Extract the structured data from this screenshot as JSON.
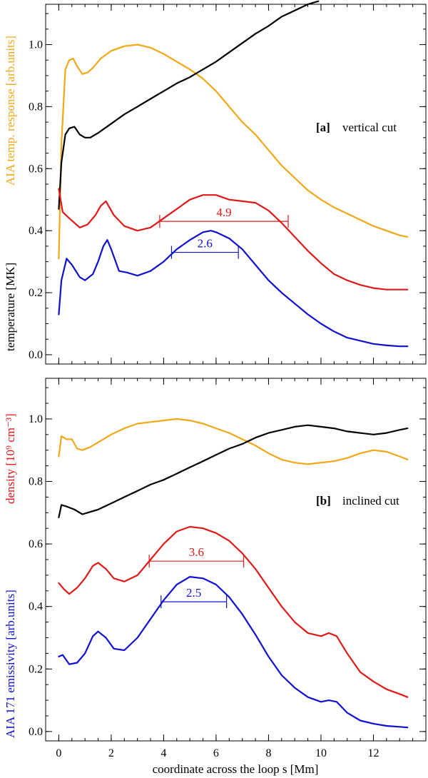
{
  "figure": {
    "xlabel": "coordinate across the loop  s  [Mm]",
    "left_axis_labels": {
      "a_yellow": "AIA temp. response  [arb.units]",
      "a_black": "temperature  [MK]",
      "b_red": "density  [10⁹ cm⁻³]",
      "b_blue": "AIA 171 emissivity  [arb.units]"
    },
    "colors": {
      "yellow": "#f0a818",
      "black": "#000000",
      "red": "#e01818",
      "blue": "#1010d0"
    }
  },
  "chart_data": [
    {
      "type": "line",
      "panel_tag": "[a]",
      "panel_desc": "vertical cut",
      "xlim": [
        -0.5,
        14
      ],
      "ylim": [
        -0.03,
        1.13
      ],
      "xticks": [
        0,
        2,
        4,
        6,
        8,
        10,
        12
      ],
      "yticks": [
        0.0,
        0.2,
        0.4,
        0.6,
        0.8,
        1.0
      ],
      "ytick_labels": [
        "0.0",
        "0.2",
        "0.4",
        "0.6",
        "0.8",
        "1.0"
      ],
      "series": [
        {
          "color": "yellow",
          "x": [
            0,
            0.1,
            0.25,
            0.4,
            0.55,
            0.7,
            0.9,
            1.1,
            1.3,
            1.6,
            2.0,
            2.5,
            3.0,
            3.5,
            4.0,
            4.5,
            5.0,
            5.5,
            6.0,
            6.5,
            7.0,
            7.5,
            8.0,
            8.5,
            9.0,
            9.5,
            10.0,
            10.5,
            11.0,
            11.5,
            12.0,
            12.5,
            13.0,
            13.3
          ],
          "y": [
            0.31,
            0.68,
            0.92,
            0.95,
            0.955,
            0.93,
            0.905,
            0.91,
            0.925,
            0.955,
            0.98,
            0.995,
            1.0,
            0.99,
            0.97,
            0.945,
            0.92,
            0.89,
            0.85,
            0.8,
            0.75,
            0.71,
            0.66,
            0.61,
            0.57,
            0.53,
            0.5,
            0.475,
            0.455,
            0.435,
            0.415,
            0.4,
            0.385,
            0.38
          ]
        },
        {
          "color": "black",
          "x": [
            0,
            0.1,
            0.25,
            0.4,
            0.6,
            0.8,
            1.0,
            1.2,
            1.5,
            2.0,
            2.5,
            3.0,
            3.5,
            4.0,
            4.5,
            5.0,
            5.5,
            6.0,
            6.5,
            7.0,
            7.5,
            8.0,
            8.5,
            9.0,
            9.5,
            9.9
          ],
          "y": [
            0.47,
            0.62,
            0.71,
            0.73,
            0.735,
            0.71,
            0.7,
            0.7,
            0.715,
            0.745,
            0.775,
            0.8,
            0.825,
            0.85,
            0.875,
            0.895,
            0.92,
            0.945,
            0.975,
            1.005,
            1.035,
            1.06,
            1.09,
            1.11,
            1.13,
            1.14
          ]
        },
        {
          "color": "red",
          "x": [
            0,
            0.15,
            0.4,
            0.8,
            1.1,
            1.4,
            1.6,
            1.8,
            2.1,
            2.5,
            3.0,
            3.5,
            4.0,
            4.5,
            5.0,
            5.5,
            6.0,
            6.5,
            7.0,
            7.5,
            8.0,
            8.5,
            9.0,
            9.5,
            10.0,
            10.5,
            11.0,
            11.5,
            12.0,
            12.5,
            13.0,
            13.3
          ],
          "y": [
            0.535,
            0.46,
            0.44,
            0.41,
            0.42,
            0.45,
            0.48,
            0.495,
            0.45,
            0.415,
            0.4,
            0.41,
            0.44,
            0.47,
            0.5,
            0.515,
            0.515,
            0.5,
            0.495,
            0.49,
            0.465,
            0.425,
            0.38,
            0.335,
            0.295,
            0.26,
            0.24,
            0.225,
            0.215,
            0.21,
            0.21,
            0.21
          ]
        },
        {
          "color": "blue",
          "x": [
            0,
            0.1,
            0.3,
            0.5,
            0.8,
            1.0,
            1.3,
            1.5,
            1.7,
            1.85,
            2.0,
            2.3,
            2.6,
            3.0,
            3.5,
            4.0,
            4.5,
            5.0,
            5.5,
            5.8,
            6.0,
            6.5,
            7.0,
            7.5,
            8.0,
            8.5,
            9.0,
            9.5,
            10.0,
            10.5,
            11.0,
            11.5,
            12.0,
            12.5,
            13.0,
            13.3
          ],
          "y": [
            0.13,
            0.24,
            0.31,
            0.29,
            0.25,
            0.24,
            0.26,
            0.3,
            0.35,
            0.37,
            0.34,
            0.27,
            0.265,
            0.255,
            0.27,
            0.3,
            0.34,
            0.37,
            0.395,
            0.4,
            0.395,
            0.375,
            0.34,
            0.29,
            0.24,
            0.2,
            0.165,
            0.13,
            0.1,
            0.075,
            0.055,
            0.045,
            0.035,
            0.03,
            0.027,
            0.027
          ]
        }
      ],
      "widths": [
        {
          "color": "red",
          "label": "4.9",
          "x1": 3.85,
          "x2": 8.75,
          "y": 0.43
        },
        {
          "color": "blue",
          "label": "2.6",
          "x1": 4.3,
          "x2": 6.85,
          "y": 0.33
        }
      ]
    },
    {
      "type": "line",
      "panel_tag": "[b]",
      "panel_desc": "inclined cut",
      "xlim": [
        -0.5,
        14
      ],
      "ylim": [
        -0.03,
        1.13
      ],
      "xticks": [
        0,
        2,
        4,
        6,
        8,
        10,
        12
      ],
      "xtick_labels": [
        "0",
        "2",
        "4",
        "6",
        "8",
        "10",
        "12"
      ],
      "yticks": [
        0.0,
        0.2,
        0.4,
        0.6,
        0.8,
        1.0
      ],
      "ytick_labels": [
        "0.0",
        "0.2",
        "0.4",
        "0.6",
        "0.8",
        "1.0"
      ],
      "series": [
        {
          "color": "yellow",
          "x": [
            0,
            0.1,
            0.3,
            0.5,
            0.7,
            0.9,
            1.2,
            1.5,
            2.0,
            2.5,
            3.0,
            3.5,
            4.0,
            4.5,
            5.0,
            5.5,
            6.0,
            6.5,
            7.0,
            7.5,
            8.0,
            8.5,
            9.0,
            9.5,
            10.0,
            10.5,
            11.0,
            11.5,
            12.0,
            12.5,
            13.0,
            13.3
          ],
          "y": [
            0.88,
            0.945,
            0.935,
            0.935,
            0.905,
            0.9,
            0.91,
            0.925,
            0.95,
            0.97,
            0.985,
            0.99,
            0.995,
            1.0,
            0.995,
            0.985,
            0.97,
            0.955,
            0.935,
            0.915,
            0.89,
            0.87,
            0.86,
            0.855,
            0.86,
            0.865,
            0.875,
            0.89,
            0.9,
            0.895,
            0.88,
            0.87
          ]
        },
        {
          "color": "black",
          "x": [
            0,
            0.1,
            0.3,
            0.6,
            0.9,
            1.1,
            1.5,
            2.0,
            2.5,
            3.0,
            3.5,
            4.0,
            4.5,
            5.0,
            5.5,
            6.0,
            6.5,
            7.0,
            7.5,
            8.0,
            8.5,
            9.0,
            9.5,
            10.0,
            10.5,
            11.0,
            11.5,
            12.0,
            12.5,
            13.0,
            13.3
          ],
          "y": [
            0.685,
            0.725,
            0.72,
            0.71,
            0.695,
            0.7,
            0.71,
            0.73,
            0.75,
            0.77,
            0.79,
            0.805,
            0.825,
            0.845,
            0.865,
            0.885,
            0.905,
            0.92,
            0.94,
            0.955,
            0.965,
            0.975,
            0.98,
            0.975,
            0.97,
            0.96,
            0.955,
            0.95,
            0.955,
            0.965,
            0.97
          ]
        },
        {
          "color": "red",
          "x": [
            0,
            0.2,
            0.4,
            0.7,
            1.0,
            1.3,
            1.5,
            1.8,
            2.1,
            2.5,
            3.0,
            3.5,
            4.0,
            4.5,
            5.0,
            5.5,
            6.0,
            6.5,
            7.0,
            7.5,
            8.0,
            8.5,
            9.0,
            9.5,
            10.0,
            10.3,
            10.6,
            11.0,
            11.5,
            12.0,
            12.5,
            13.0,
            13.3
          ],
          "y": [
            0.475,
            0.455,
            0.44,
            0.46,
            0.49,
            0.53,
            0.54,
            0.52,
            0.49,
            0.48,
            0.5,
            0.55,
            0.6,
            0.64,
            0.655,
            0.65,
            0.635,
            0.61,
            0.57,
            0.52,
            0.46,
            0.4,
            0.35,
            0.315,
            0.305,
            0.315,
            0.305,
            0.25,
            0.19,
            0.16,
            0.135,
            0.12,
            0.11
          ]
        },
        {
          "color": "blue",
          "x": [
            0,
            0.15,
            0.4,
            0.7,
            1.0,
            1.3,
            1.5,
            1.8,
            2.1,
            2.5,
            3.0,
            3.5,
            4.0,
            4.5,
            5.0,
            5.5,
            6.0,
            6.5,
            7.0,
            7.5,
            8.0,
            8.5,
            9.0,
            9.5,
            10.0,
            10.3,
            10.6,
            11.0,
            11.5,
            12.0,
            12.5,
            13.0,
            13.3
          ],
          "y": [
            0.24,
            0.245,
            0.215,
            0.22,
            0.25,
            0.305,
            0.32,
            0.3,
            0.265,
            0.26,
            0.3,
            0.36,
            0.42,
            0.47,
            0.495,
            0.49,
            0.47,
            0.43,
            0.375,
            0.31,
            0.24,
            0.18,
            0.14,
            0.11,
            0.095,
            0.1,
            0.095,
            0.06,
            0.035,
            0.025,
            0.018,
            0.015,
            0.013
          ]
        }
      ],
      "widths": [
        {
          "color": "red",
          "label": "3.6",
          "x1": 3.45,
          "x2": 7.05,
          "y": 0.545
        },
        {
          "color": "blue",
          "label": "2.5",
          "x1": 3.9,
          "x2": 6.4,
          "y": 0.415
        }
      ]
    }
  ]
}
